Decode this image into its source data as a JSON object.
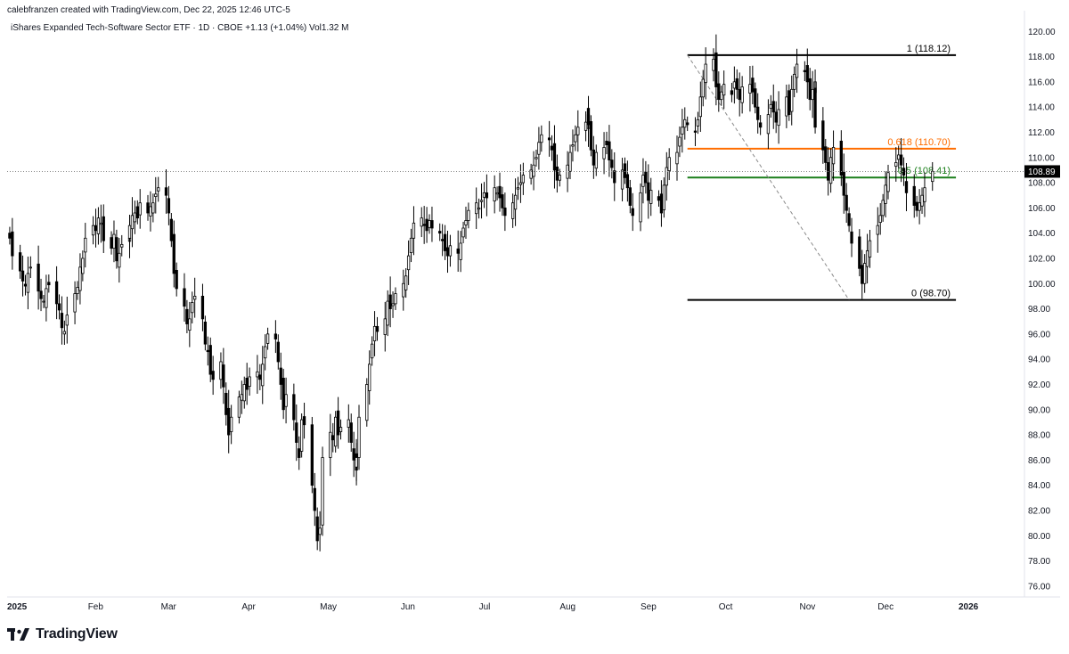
{
  "header": {
    "attribution": "calebfranzen created with TradingView.com, Dec 22, 2025 12:46 UTC-5",
    "symbol_line": "iShares Expanded Tech-Software Sector ETF · 1D · CBOE  +1.13 (+1.04%)  Vol1.32 M"
  },
  "footer": {
    "brand": "TradingView",
    "brand_icon": "tradingview-logo-icon"
  },
  "chart_data": {
    "type": "candlestick",
    "title": "",
    "xlabel": "",
    "ylabel": "",
    "ylim": [
      75,
      121
    ],
    "y_ticks": [
      "76.00",
      "78.00",
      "80.00",
      "82.00",
      "84.00",
      "86.00",
      "88.00",
      "90.00",
      "92.00",
      "94.00",
      "96.00",
      "98.00",
      "100.00",
      "102.00",
      "104.00",
      "106.00",
      "108.00",
      "110.00",
      "112.00",
      "114.00",
      "116.00",
      "118.00",
      "120.00"
    ],
    "x_ticks": [
      {
        "label": "2025",
        "date": "2025-01-01",
        "bold": true
      },
      {
        "label": "Feb",
        "date": "2025-02-01",
        "bold": false
      },
      {
        "label": "Mar",
        "date": "2025-03-01",
        "bold": false
      },
      {
        "label": "Apr",
        "date": "2025-04-01",
        "bold": false
      },
      {
        "label": "May",
        "date": "2025-05-01",
        "bold": false
      },
      {
        "label": "Jun",
        "date": "2025-06-01",
        "bold": false
      },
      {
        "label": "Jul",
        "date": "2025-07-01",
        "bold": false
      },
      {
        "label": "Aug",
        "date": "2025-08-01",
        "bold": false
      },
      {
        "label": "Sep",
        "date": "2025-09-01",
        "bold": false
      },
      {
        "label": "Oct",
        "date": "2025-10-01",
        "bold": false
      },
      {
        "label": "Nov",
        "date": "2025-11-01",
        "bold": false
      },
      {
        "label": "Dec",
        "date": "2025-12-01",
        "bold": false
      },
      {
        "label": "2026",
        "date": "2026-01-01",
        "bold": true
      }
    ],
    "last_price": "108.89",
    "last_price_value": 108.89,
    "fib_levels": [
      {
        "ratio": "1",
        "label": "1 (118.12)",
        "value": 118.12,
        "color": "#000000"
      },
      {
        "ratio": "0.618",
        "label": "0.618 (110.70)",
        "value": 110.7,
        "color": "#ff6d00"
      },
      {
        "ratio": "0.5",
        "label": "0.5 (108.41)",
        "value": 108.41,
        "color": "#1b7f1b"
      },
      {
        "ratio": "0",
        "label": "0 (98.70)",
        "value": 98.7,
        "color": "#000000"
      }
    ],
    "fib_start_date": "2025-09-19",
    "fib_end_date": "2025-12-31",
    "fib_trend": {
      "from_date": "2025-09-19",
      "from": 118.12,
      "to_date": "2025-11-20",
      "to": 98.7
    },
    "colors": {
      "up": "#ffffff",
      "down": "#000000",
      "wick": "#000000",
      "price_tag": "#000000",
      "dotted_line": "#888888"
    },
    "series_dates": [
      "2025-01-02",
      "2025-12-22"
    ],
    "close": [
      103.6,
      102.2,
      101.0,
      100.2,
      99.8,
      100.8,
      101.3,
      99.4,
      98.8,
      98.6,
      99.6,
      99.9,
      98.4,
      97.9,
      96.5,
      96.2,
      97.5,
      99.2,
      99.7,
      101.3,
      102.0,
      103.6,
      104.6,
      104.2,
      105.2,
      104.8,
      103.4,
      102.8,
      103.9,
      101.8,
      102.4,
      103.1,
      103.6,
      104.6,
      105.4,
      105.6,
      105.2,
      106.4,
      105.6,
      106.1,
      106.4,
      107.1,
      107.6,
      107.0,
      105.6,
      103.4,
      100.8,
      99.6,
      98.2,
      96.8,
      97.2,
      98.5,
      99.0,
      97.2,
      95.2,
      94.6,
      92.8,
      92.4,
      93.8,
      91.8,
      89.6,
      88.0,
      89.4,
      91.0,
      91.2,
      92.0,
      91.6,
      92.6,
      93.0,
      92.4,
      93.6,
      95.0,
      96.0,
      95.6,
      93.8,
      92.0,
      90.0,
      91.2,
      89.2,
      87.4,
      86.2,
      89.2,
      88.8,
      84.0,
      82.0,
      79.6,
      80.6,
      86.2,
      88.2,
      87.6,
      89.4,
      88.0,
      88.6,
      89.2,
      87.4,
      86.0,
      85.2,
      86.2,
      89.4,
      92.0,
      93.6,
      95.2,
      96.6,
      96.2,
      97.2,
      98.6,
      98.0,
      98.4,
      99.2,
      100.0,
      100.6,
      102.2,
      103.6,
      104.8,
      105.2,
      104.6,
      104.2,
      105.0,
      104.4,
      104.0,
      103.4,
      102.6,
      102.2,
      103.0,
      102.4,
      103.2,
      104.4,
      105.0,
      105.8,
      106.4,
      106.0,
      106.6,
      107.2,
      106.8,
      107.6,
      107.2,
      106.8,
      106.0,
      105.4,
      106.4,
      107.0,
      107.6,
      108.0,
      108.6,
      109.0,
      109.4,
      110.0,
      111.2,
      111.8,
      111.4,
      110.6,
      109.0,
      108.2,
      108.6,
      109.4,
      110.4,
      111.0,
      111.8,
      112.4,
      112.8,
      113.4,
      112.6,
      110.6,
      109.4,
      110.4,
      110.8,
      111.0,
      109.8,
      109.2,
      108.0,
      109.0,
      108.4,
      107.6,
      106.2,
      105.4,
      107.2,
      108.6,
      108.0,
      106.6,
      107.4,
      106.6,
      105.6,
      107.8,
      109.2,
      110.0,
      110.4,
      111.6,
      112.4,
      113.0,
      112.6,
      112.0,
      113.0,
      114.8,
      116.2,
      117.4,
      117.8,
      115.6,
      114.6,
      115.2,
      115.8,
      115.0,
      116.0,
      115.4,
      114.6,
      115.6,
      115.8,
      115.2,
      114.0,
      113.0,
      112.4,
      113.4,
      114.2,
      113.6,
      112.8,
      113.8,
      114.8,
      113.4,
      115.4,
      116.6,
      117.4,
      116.8,
      116.0,
      114.6,
      115.4,
      116.0,
      112.4,
      110.6,
      109.6,
      108.2,
      110.0,
      110.8,
      108.6,
      107.0,
      105.8,
      104.6,
      103.2,
      101.2,
      100.0,
      101.6,
      102.6,
      103.4,
      104.6,
      105.4,
      106.6,
      107.8,
      108.8,
      109.6,
      110.2,
      109.4,
      108.6,
      107.2,
      106.2,
      105.8,
      106.4,
      107.0,
      107.6,
      108.89
    ]
  }
}
